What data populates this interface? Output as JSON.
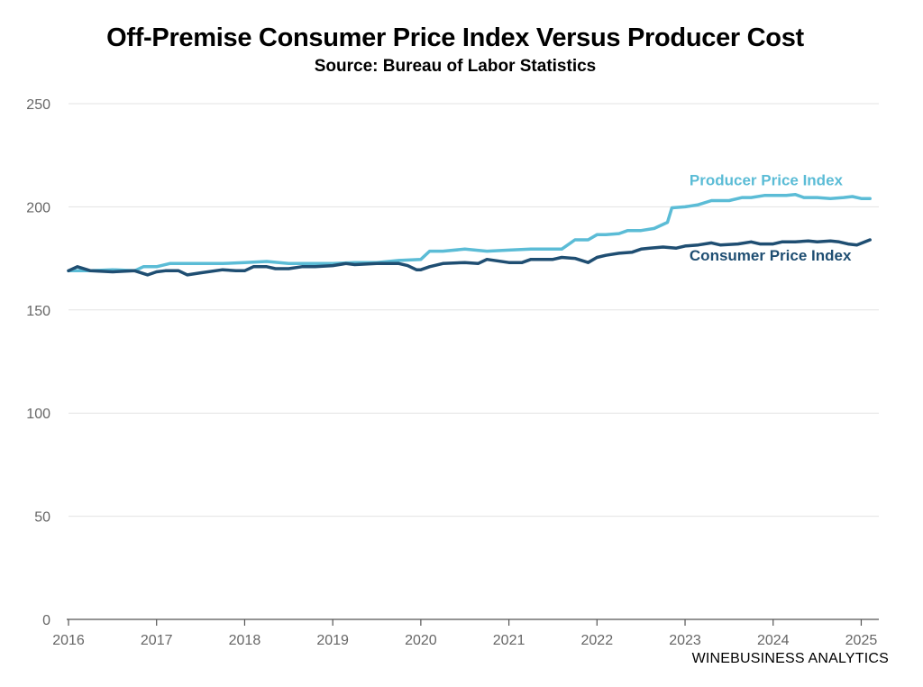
{
  "header": {
    "title": "Off-Premise Consumer Price Index Versus Producer Cost",
    "subtitle": "Source: Bureau of Labor Statistics"
  },
  "footer": {
    "credit": "WINEBUSINESS ANALYTICS"
  },
  "colors": {
    "ppi": "#5bbcd6",
    "cpi": "#1f4e72",
    "grid": "#e3e3e3",
    "axis": "#555555",
    "tick_label": "#666666"
  },
  "chart_data": {
    "type": "line",
    "title": "Off-Premise Consumer Price Index Versus Producer Cost",
    "subtitle": "Source: Bureau of Labor Statistics",
    "xlabel": "",
    "ylabel": "",
    "xlim": [
      2016,
      2025.2
    ],
    "ylim": [
      0,
      250
    ],
    "x_ticks": [
      2016,
      2017,
      2018,
      2019,
      2020,
      2021,
      2022,
      2023,
      2024,
      2025
    ],
    "x_tick_labels": [
      "2016",
      "2017",
      "2018",
      "2019",
      "2020",
      "2021",
      "2022",
      "2023",
      "2024",
      "2025"
    ],
    "y_ticks": [
      0,
      50,
      100,
      150,
      200,
      250
    ],
    "y_tick_labels": [
      "0",
      "50",
      "100",
      "150",
      "200",
      "250"
    ],
    "grid": "horizontal",
    "series": [
      {
        "name": "Producer Price Index",
        "color": "#5bbcd6",
        "x": [
          2016.0,
          2016.25,
          2016.5,
          2016.75,
          2016.85,
          2017.0,
          2017.15,
          2017.25,
          2017.5,
          2017.75,
          2018.0,
          2018.25,
          2018.5,
          2018.75,
          2019.0,
          2019.25,
          2019.5,
          2019.75,
          2020.0,
          2020.1,
          2020.25,
          2020.5,
          2020.75,
          2021.0,
          2021.25,
          2021.5,
          2021.6,
          2021.75,
          2021.9,
          2022.0,
          2022.1,
          2022.25,
          2022.35,
          2022.5,
          2022.65,
          2022.8,
          2022.85,
          2023.0,
          2023.15,
          2023.3,
          2023.5,
          2023.65,
          2023.75,
          2023.9,
          2024.0,
          2024.15,
          2024.25,
          2024.35,
          2024.5,
          2024.65,
          2024.8,
          2024.9,
          2025.0,
          2025.1
        ],
        "values": [
          169,
          169,
          169.5,
          169,
          171,
          171,
          172.5,
          172.5,
          172.5,
          172.5,
          173,
          173.5,
          172.5,
          172.5,
          172.5,
          173,
          173,
          174,
          174.5,
          178.5,
          178.5,
          179.5,
          178.5,
          179,
          179.5,
          179.5,
          179.5,
          184,
          184,
          186.5,
          186.5,
          187,
          188.5,
          188.5,
          189.5,
          192.5,
          199.5,
          200,
          201,
          203,
          203,
          204.5,
          204.5,
          205.5,
          205.5,
          205.5,
          206,
          204.5,
          204.5,
          204,
          204.5,
          205,
          204,
          204
        ]
      },
      {
        "name": "Consumer Price Index",
        "color": "#1f4e72",
        "x": [
          2016.0,
          2016.1,
          2016.25,
          2016.5,
          2016.75,
          2016.9,
          2017.0,
          2017.1,
          2017.25,
          2017.35,
          2017.5,
          2017.75,
          2017.9,
          2018.0,
          2018.1,
          2018.25,
          2018.35,
          2018.5,
          2018.65,
          2018.8,
          2019.0,
          2019.15,
          2019.25,
          2019.5,
          2019.75,
          2019.85,
          2019.95,
          2020.0,
          2020.1,
          2020.25,
          2020.5,
          2020.65,
          2020.75,
          2021.0,
          2021.15,
          2021.25,
          2021.5,
          2021.6,
          2021.75,
          2021.9,
          2022.0,
          2022.1,
          2022.25,
          2022.4,
          2022.5,
          2022.6,
          2022.75,
          2022.9,
          2023.0,
          2023.15,
          2023.3,
          2023.4,
          2023.6,
          2023.75,
          2023.85,
          2024.0,
          2024.1,
          2024.25,
          2024.4,
          2024.5,
          2024.65,
          2024.75,
          2024.85,
          2024.95,
          2025.1
        ],
        "values": [
          169,
          171,
          169,
          168.5,
          169,
          167,
          168.5,
          169,
          169,
          167,
          168,
          169.5,
          169,
          169,
          171,
          171,
          170,
          170,
          171,
          171,
          171.5,
          172.5,
          172,
          172.5,
          172.5,
          171.5,
          169.5,
          169.5,
          171,
          172.5,
          173,
          172.5,
          174.5,
          173,
          173,
          174.5,
          174.5,
          175.5,
          175,
          173,
          175.5,
          176.5,
          177.5,
          178,
          179.5,
          180,
          180.5,
          180,
          181,
          181.5,
          182.5,
          181.5,
          182,
          183,
          182,
          182,
          183,
          183,
          183.5,
          183,
          183.5,
          183,
          182,
          181.5,
          184
        ]
      }
    ],
    "annotations": [
      {
        "text": "Producer Price Index",
        "series": "Producer Price Index",
        "anchor_x": 2023.05,
        "anchor_y": 210.5
      },
      {
        "text": "Consumer Price Index",
        "series": "Consumer Price Index",
        "anchor_x": 2023.05,
        "anchor_y": 174
      }
    ]
  }
}
